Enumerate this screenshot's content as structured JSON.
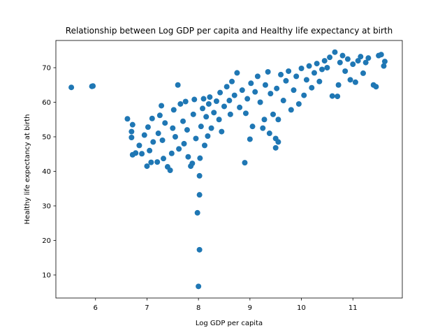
{
  "chart_data": {
    "type": "scatter",
    "title": "Relationship between Log GDP per capita and Healthy life expectancy at birth",
    "x_label": "Log GDP per capita",
    "y_label": "Healthy life expectancy at birth",
    "color": "#1f77b4",
    "xlim": [
      5.23,
      11.96
    ],
    "ylim": [
      3.33,
      77.88
    ],
    "xticks": [
      6,
      7,
      8,
      9,
      10,
      11
    ],
    "yticks": [
      10,
      20,
      30,
      40,
      50,
      60,
      70
    ],
    "grid": false,
    "x": [
      5.53,
      5.93,
      5.95,
      6.62,
      6.72,
      6.7,
      6.7,
      6.72,
      6.78,
      6.85,
      6.9,
      6.95,
      7.0,
      7.02,
      7.05,
      7.08,
      7.1,
      7.12,
      7.2,
      7.22,
      7.25,
      7.28,
      7.3,
      7.32,
      7.35,
      7.4,
      7.45,
      7.48,
      7.5,
      7.52,
      7.55,
      7.6,
      7.62,
      7.65,
      7.7,
      7.72,
      7.75,
      7.78,
      7.8,
      7.85,
      7.88,
      7.9,
      7.92,
      7.95,
      7.98,
      8.0,
      8.02,
      8.02,
      8.02,
      8.03,
      8.05,
      8.08,
      8.1,
      8.12,
      8.15,
      8.18,
      8.2,
      8.22,
      8.25,
      8.3,
      8.35,
      8.4,
      8.42,
      8.45,
      8.5,
      8.55,
      8.6,
      8.62,
      8.65,
      8.7,
      8.75,
      8.8,
      8.85,
      8.9,
      8.92,
      8.95,
      9.0,
      9.02,
      9.05,
      9.1,
      9.15,
      9.2,
      9.25,
      9.3,
      9.35,
      9.4,
      9.45,
      9.5,
      9.5,
      9.52,
      9.55,
      9.6,
      9.65,
      9.7,
      9.75,
      9.8,
      9.85,
      9.9,
      9.95,
      10.0,
      10.05,
      10.1,
      10.15,
      10.2,
      10.25,
      10.3,
      10.35,
      10.4,
      10.45,
      10.5,
      10.55,
      10.6,
      10.65,
      10.7,
      10.72,
      10.75,
      10.8,
      10.85,
      10.9,
      10.95,
      11.0,
      11.05,
      11.1,
      11.15,
      11.2,
      11.25,
      11.3,
      11.4,
      11.45,
      11.5,
      11.55,
      11.6,
      11.62,
      9.55,
      9.28,
      9.38
    ],
    "y": [
      64.3,
      64.6,
      64.7,
      55.2,
      53.5,
      51.5,
      49.8,
      44.8,
      45.3,
      47.5,
      45.1,
      50.5,
      41.5,
      52.8,
      46.0,
      42.6,
      55.3,
      48.5,
      42.7,
      51.0,
      56.2,
      59.0,
      49.0,
      43.7,
      54.0,
      41.3,
      40.3,
      45.2,
      52.5,
      57.8,
      50.0,
      65.0,
      46.5,
      59.5,
      54.5,
      48.0,
      60.2,
      52.0,
      44.2,
      41.5,
      42.3,
      56.5,
      60.8,
      49.5,
      28.0,
      6.7,
      17.3,
      33.2,
      38.7,
      43.8,
      53.0,
      58.2,
      61.0,
      47.5,
      55.8,
      50.2,
      59.5,
      61.5,
      52.5,
      57.0,
      60.3,
      55.0,
      62.8,
      51.5,
      58.8,
      64.5,
      60.5,
      56.5,
      66.0,
      62.0,
      68.5,
      58.5,
      63.5,
      42.5,
      56.8,
      61.0,
      49.3,
      65.5,
      53.0,
      63.0,
      67.5,
      60.0,
      52.5,
      65.0,
      68.8,
      62.5,
      56.5,
      46.8,
      49.5,
      64.0,
      55.0,
      68.0,
      60.5,
      66.2,
      69.0,
      57.8,
      63.5,
      67.5,
      59.5,
      69.8,
      62.0,
      66.5,
      70.5,
      64.2,
      68.5,
      71.2,
      66.0,
      69.5,
      72.0,
      70.0,
      73.0,
      61.8,
      74.5,
      61.7,
      65.0,
      71.5,
      73.5,
      69.0,
      72.5,
      66.5,
      71.0,
      65.8,
      72.0,
      73.2,
      68.4,
      71.5,
      72.8,
      65.0,
      64.5,
      73.5,
      73.8,
      70.5,
      71.8,
      48.5,
      55.0,
      51.0
    ]
  }
}
